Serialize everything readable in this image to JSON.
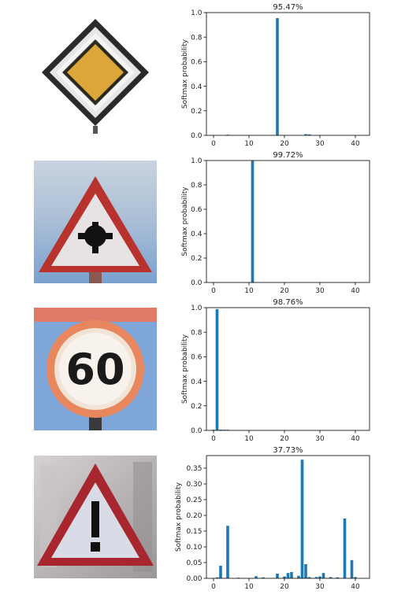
{
  "chart_data": [
    {
      "type": "bar",
      "title": "95.47%",
      "ylabel": "Softmax probability",
      "xlim": [
        -2,
        44
      ],
      "ylim": [
        0,
        1.0
      ],
      "xticks": [
        0,
        10,
        20,
        30,
        40
      ],
      "yticks": [
        0.0,
        0.2,
        0.4,
        0.6,
        0.8,
        1.0
      ],
      "ytick_labels": [
        "0.0",
        "0.2",
        "0.4",
        "0.6",
        "0.8",
        "1.0"
      ],
      "bars": [
        {
          "x": 4,
          "y": 0.004
        },
        {
          "x": 18,
          "y": 0.955
        },
        {
          "x": 26,
          "y": 0.01
        },
        {
          "x": 27,
          "y": 0.008
        }
      ],
      "bar_color": "#1f77b4",
      "image": "priority-road-sign"
    },
    {
      "type": "bar",
      "title": "99.72%",
      "ylabel": "Softmax probability",
      "xlim": [
        -2,
        44
      ],
      "ylim": [
        0,
        1.0
      ],
      "xticks": [
        0,
        10,
        20,
        30,
        40
      ],
      "yticks": [
        0.0,
        0.2,
        0.4,
        0.6,
        0.8,
        1.0
      ],
      "ytick_labels": [
        "0.0",
        "0.2",
        "0.4",
        "0.6",
        "0.8",
        "1.0"
      ],
      "bars": [
        {
          "x": 11,
          "y": 0.997
        }
      ],
      "bar_color": "#1f77b4",
      "image": "right-of-way-intersection-sign"
    },
    {
      "type": "bar",
      "title": "98.76%",
      "ylabel": "Softmax probability",
      "xlim": [
        -2,
        44
      ],
      "ylim": [
        0,
        1.0
      ],
      "xticks": [
        0,
        10,
        20,
        30,
        40
      ],
      "yticks": [
        0.0,
        0.2,
        0.4,
        0.6,
        0.8,
        1.0
      ],
      "ytick_labels": [
        "0.0",
        "0.2",
        "0.4",
        "0.6",
        "0.8",
        "1.0"
      ],
      "bars": [
        {
          "x": 0,
          "y": 0.004
        },
        {
          "x": 1,
          "y": 0.988
        },
        {
          "x": 2,
          "y": 0.006
        },
        {
          "x": 3,
          "y": 0.004
        },
        {
          "x": 4,
          "y": 0.003
        }
      ],
      "bar_color": "#1f77b4",
      "image": "speed-limit-60-sign",
      "sign_text": "60"
    },
    {
      "type": "bar",
      "title": "37.73%",
      "ylabel": "Softmax probability",
      "xlim": [
        -2,
        44
      ],
      "ylim": [
        0,
        0.39
      ],
      "xticks": [
        0,
        10,
        20,
        30,
        40
      ],
      "yticks": [
        0.0,
        0.05,
        0.1,
        0.15,
        0.2,
        0.25,
        0.3,
        0.35
      ],
      "ytick_labels": [
        "0.00",
        "0.05",
        "0.10",
        "0.15",
        "0.20",
        "0.25",
        "0.30",
        "0.35"
      ],
      "bars": [
        {
          "x": 1,
          "y": 0.003
        },
        {
          "x": 2,
          "y": 0.04
        },
        {
          "x": 4,
          "y": 0.167
        },
        {
          "x": 7,
          "y": 0.002
        },
        {
          "x": 12,
          "y": 0.007
        },
        {
          "x": 14,
          "y": 0.003
        },
        {
          "x": 18,
          "y": 0.015
        },
        {
          "x": 20,
          "y": 0.006
        },
        {
          "x": 21,
          "y": 0.017
        },
        {
          "x": 22,
          "y": 0.02
        },
        {
          "x": 24,
          "y": 0.008
        },
        {
          "x": 25,
          "y": 0.377
        },
        {
          "x": 26,
          "y": 0.045
        },
        {
          "x": 27,
          "y": 0.004
        },
        {
          "x": 29,
          "y": 0.004
        },
        {
          "x": 30,
          "y": 0.006
        },
        {
          "x": 31,
          "y": 0.017
        },
        {
          "x": 33,
          "y": 0.004
        },
        {
          "x": 35,
          "y": 0.003
        },
        {
          "x": 37,
          "y": 0.19
        },
        {
          "x": 39,
          "y": 0.058
        },
        {
          "x": 40,
          "y": 0.004
        }
      ],
      "bar_color": "#1f77b4",
      "image": "general-caution-sign"
    }
  ]
}
